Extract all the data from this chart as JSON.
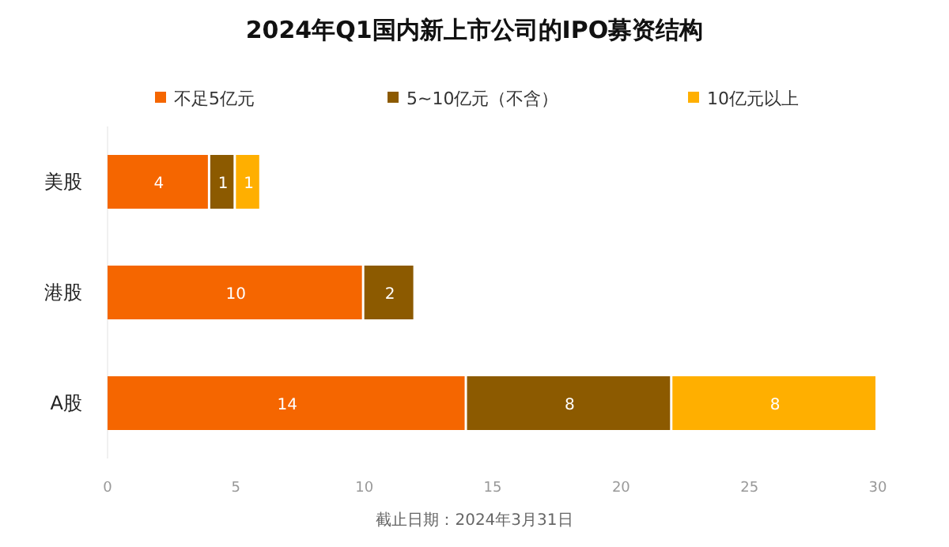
{
  "chart_data": {
    "type": "bar",
    "orientation": "horizontal",
    "stacked": true,
    "title": "2024年Q1国内新上市公司的IPO募资结构",
    "categories": [
      "美股",
      "港股",
      "A股"
    ],
    "series": [
      {
        "name": "不足5亿元",
        "color": "#f56600",
        "values": [
          4,
          10,
          14
        ]
      },
      {
        "name": "5~10亿元（不含）",
        "color": "#8c5a00",
        "values": [
          1,
          2,
          8
        ]
      },
      {
        "name": "10亿元以上",
        "color": "#ffaf00",
        "values": [
          1,
          null,
          8
        ]
      }
    ],
    "xlim": [
      0,
      30
    ],
    "xticks": [
      0,
      5,
      10,
      15,
      20,
      25,
      30
    ],
    "data_labels": true,
    "legend": "top",
    "grid": false,
    "annotations": [
      "截止日期：2024年3月31日"
    ]
  }
}
